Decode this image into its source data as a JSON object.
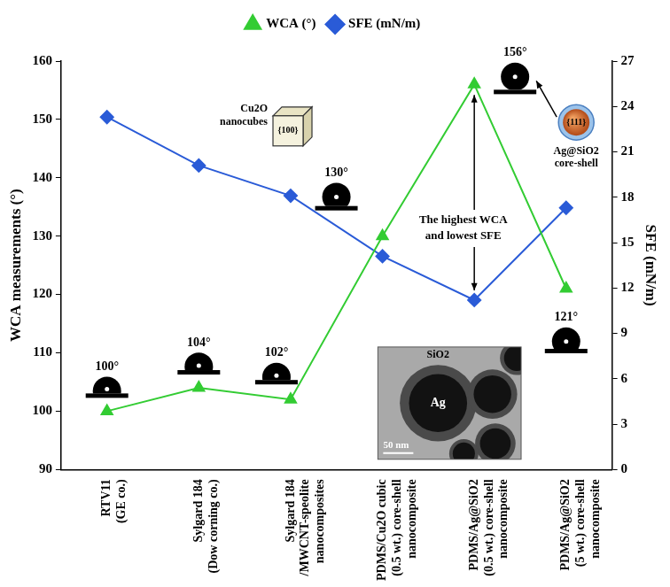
{
  "chart_data": {
    "type": "line",
    "categories": [
      "RTV11\n(GE co.)",
      "Sylgard 184\n(Dow corning co.)",
      "Sylgard 184\n/MWCNT-speolite\nnanocomposites",
      "PDMS/Cu2O cubic\n(0.5 wt.) core-shell\nnanocomposite",
      "PDMS/Ag@SiO2\n(0.5 wt.) core-shell\nnanocomposite",
      "PDMS/Ag@SiO2\n(5 wt.) core-shell\nnanocomposite"
    ],
    "series": [
      {
        "name": "WCA (°)",
        "color": "#33cc33",
        "marker": "triangle",
        "values": [
          100,
          104,
          102,
          130,
          156,
          121
        ],
        "value_labels": [
          "100°",
          "104°",
          "102°",
          "130°",
          "156°",
          "121°"
        ],
        "data_labels": true
      },
      {
        "name": "SFE (mN/m)",
        "color": "#2a5bd7",
        "marker": "diamond",
        "axis": "y2",
        "values": [
          23.3,
          20.1,
          18.1,
          14.1,
          11.2,
          17.3
        ]
      }
    ],
    "y_label": "WCA measurements (°)",
    "y2_label": "SFE (mN/m)",
    "ylim": [
      90,
      160
    ],
    "yticks": [
      90,
      100,
      110,
      120,
      130,
      140,
      150,
      160
    ],
    "y2lim": [
      0,
      27
    ],
    "y2ticks": [
      0,
      3,
      6,
      9,
      12,
      15,
      18,
      21,
      24,
      27
    ],
    "grid": false,
    "legend": "top",
    "annotations": [
      "The highest WCA\nand lowest SFE",
      "Cu2O\nnanocubes",
      "{100}",
      "Ag@SiO2\ncore-shell",
      "{111}",
      "SiO2",
      "Ag",
      "50 nm"
    ]
  }
}
